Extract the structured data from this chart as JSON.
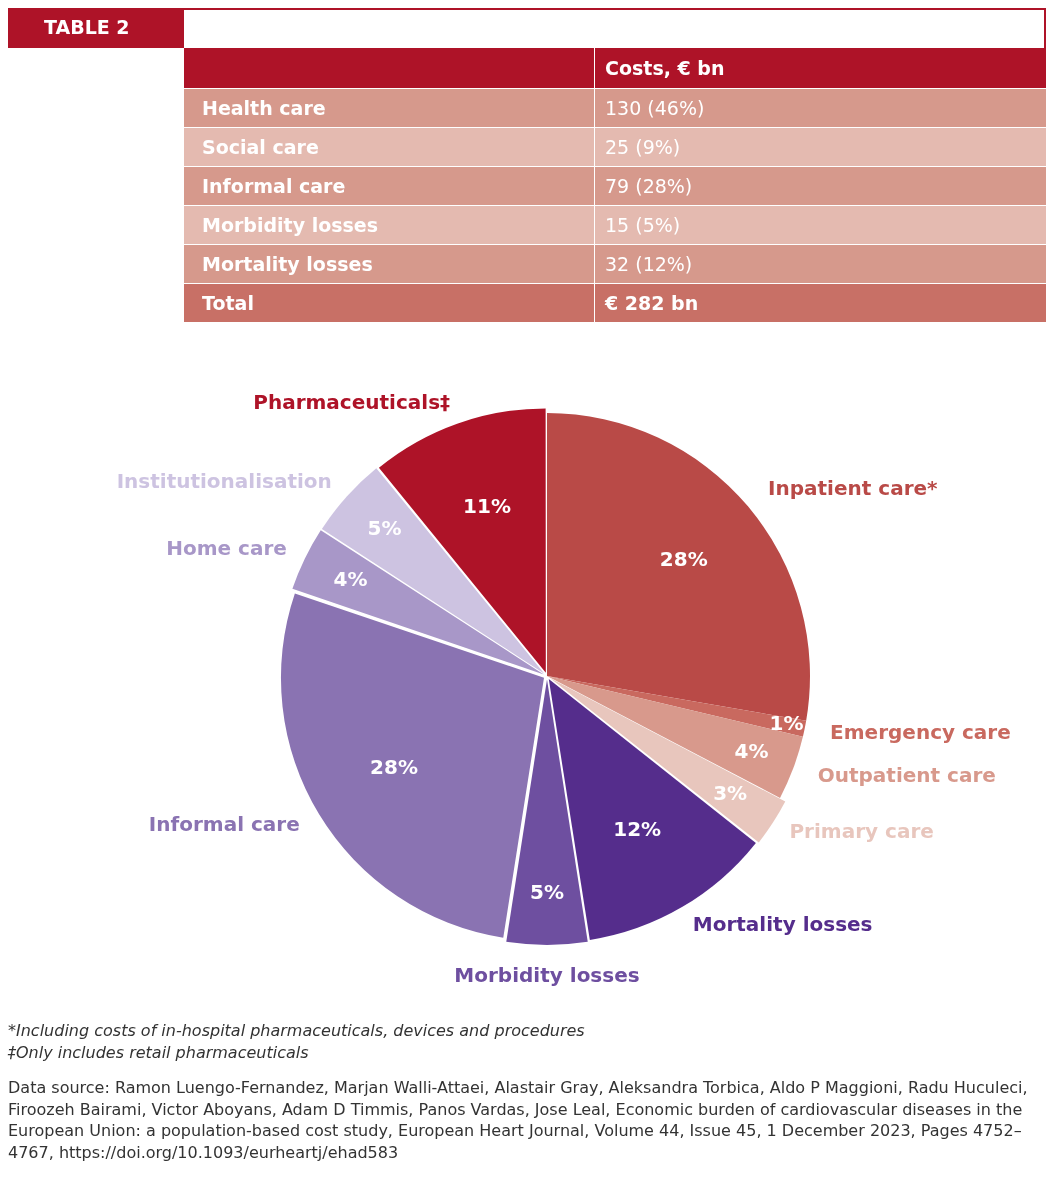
{
  "chart_data": [
    {
      "type": "other",
      "title": "TABLE 2",
      "xlabel": "Costs, € bn",
      "categories": [
        "Health care",
        "Social care",
        "Informal care",
        "Morbidity losses",
        "Mortality losses",
        "Total"
      ],
      "value_labels": [
        "130 (46%)",
        "25 (9%)",
        "79 (28%)",
        "15 (5%)",
        "32 (12%)",
        "€ 282 bn"
      ],
      "colors": [
        "#d6998c",
        "#e4bab0",
        "#d6998c",
        "#e4bab0",
        "#d6998c",
        "#c87066"
      ]
    },
    {
      "type": "pie",
      "categories": [
        "Inpatient care*",
        "Emergency care",
        "Outpatient care",
        "Primary care",
        "Mortality losses",
        "Morbidity losses",
        "Informal care",
        "Home care",
        "Institutionalisation",
        "Pharmaceuticals‡"
      ],
      "values": [
        28,
        1,
        4,
        3,
        12,
        5,
        28,
        4,
        5,
        11
      ],
      "value_labels": [
        "28%",
        "1%",
        "4%",
        "3%",
        "12%",
        "5%",
        "28%",
        "4%",
        "5%",
        "11%"
      ],
      "colors": [
        "#b94a47",
        "#c9695f",
        "#d8998c",
        "#e8c6bd",
        "#552d8c",
        "#6e4fa0",
        "#8a73b2",
        "#a897c8",
        "#cdc3e1",
        "#ae1328"
      ],
      "legend": false,
      "annotations": [
        "*Including costs of in-hospital pharmaceuticals, devices and procedures",
        "‡Only includes retail pharmaceuticals",
        "Data source: Ramon Luengo-Fernandez, Marjan Walli-Attaei, Alastair Gray, Aleksandra Torbica, Aldo P Maggioni, Radu Huculeci, Firoozeh Bairami, Victor Aboyans, Adam D Timmis, Panos Vardas, Jose Leal, Economic burden of cardiovascular diseases in the European Union: a population-based cost study, European Heart Journal, Volume 44, Issue 45, 1 December 2023, Pages 4752–4767, https://doi.org/10.1093/eurheartj/ehad583"
      ]
    }
  ]
}
